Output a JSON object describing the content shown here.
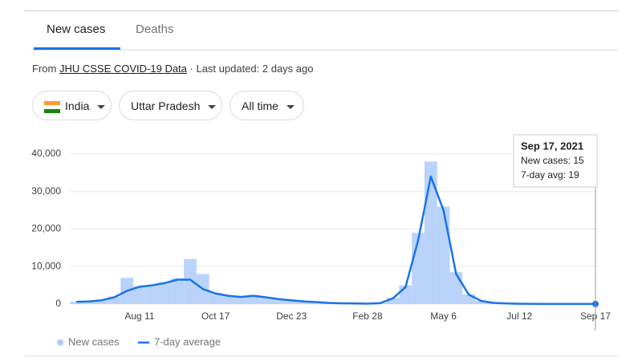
{
  "tabs": [
    "New cases",
    "Deaths"
  ],
  "source": {
    "prefix": "From",
    "link": "JHU CSSE COVID-19 Data",
    "suffix": "· Last updated: 2 days ago"
  },
  "filters": [
    "India",
    "Uttar Pradesh",
    "All time"
  ],
  "tooltip": {
    "title": "Sep 17, 2021",
    "lines": [
      "New cases: 15",
      "7-day avg: 19"
    ]
  },
  "chart_data": {
    "type": "bar-line",
    "categories": [
      null,
      null,
      null,
      null,
      null,
      "Aug 11",
      null,
      null,
      null,
      null,
      null,
      "Oct 17",
      null,
      null,
      null,
      null,
      null,
      "Dec 23",
      null,
      null,
      null,
      null,
      null,
      "Feb 28",
      null,
      null,
      null,
      null,
      null,
      "May 6",
      null,
      null,
      null,
      null,
      null,
      "Jul 12",
      null,
      null,
      null,
      null,
      null,
      "Sep 17"
    ],
    "series": [
      {
        "name": "New cases",
        "color": "#aecbfa",
        "values": [
          650,
          750,
          1100,
          2000,
          7000,
          4700,
          5100,
          5800,
          6900,
          12000,
          8000,
          3000,
          2300,
          1900,
          2400,
          1800,
          1300,
          1000,
          700,
          500,
          300,
          200,
          150,
          120,
          280,
          1700,
          5000,
          19000,
          38000,
          26000,
          8500,
          2600,
          850,
          320,
          160,
          90,
          55,
          42,
          32,
          26,
          22,
          15
        ]
      },
      {
        "name": "7-day average",
        "color": "#1a73e8",
        "values": [
          600,
          700,
          1000,
          1800,
          3500,
          4600,
          5000,
          5600,
          6500,
          6500,
          4000,
          2800,
          2200,
          1900,
          2200,
          1800,
          1300,
          1000,
          700,
          500,
          300,
          200,
          150,
          120,
          250,
          1500,
          4500,
          17000,
          34000,
          25000,
          8000,
          2500,
          800,
          300,
          150,
          80,
          50,
          40,
          30,
          25,
          20,
          19
        ]
      }
    ],
    "ylim": [
      0,
      40000
    ],
    "yticks": [
      0,
      {
        "value": 10000,
        "label": "10,000"
      },
      {
        "value": 20000,
        "label": "20,000"
      },
      {
        "value": 30000,
        "label": "30,000"
      },
      {
        "value": 40000,
        "label": "40,000"
      }
    ],
    "grid": true
  }
}
